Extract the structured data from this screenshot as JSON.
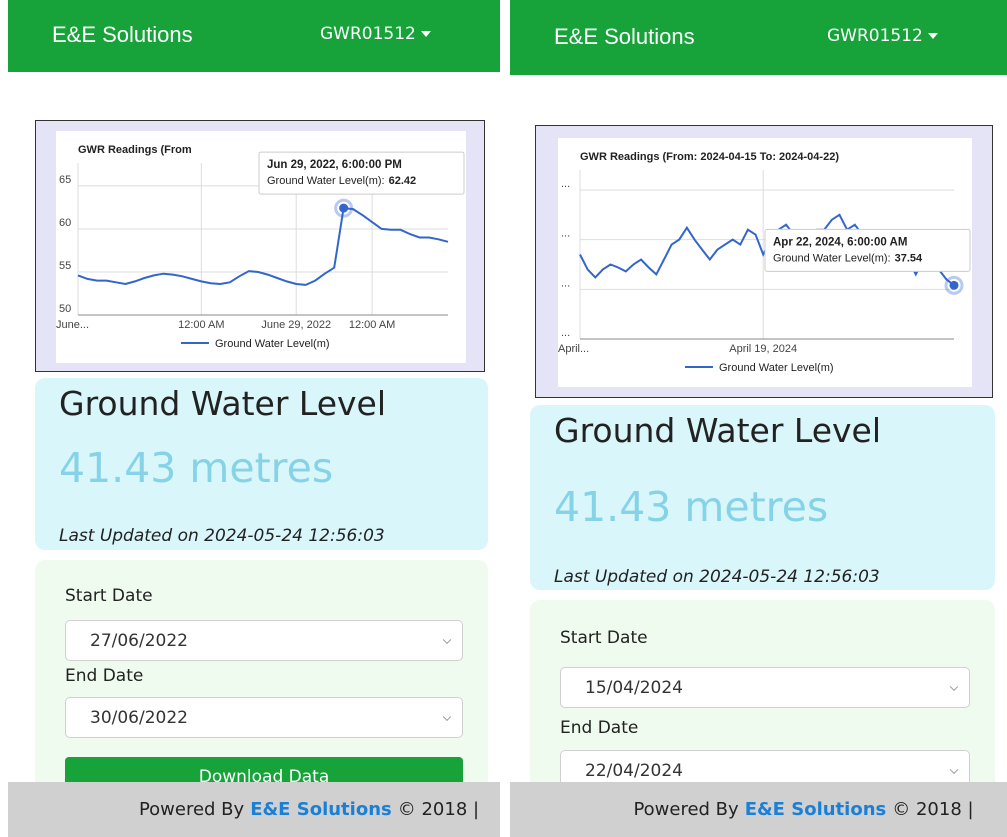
{
  "chart_data": [
    {
      "type": "line",
      "title": "GWR Readings (From",
      "categories": [
        "June...",
        null,
        null,
        null,
        null,
        null,
        null,
        null,
        null,
        null,
        null,
        null,
        null,
        "12:00 AM",
        null,
        null,
        null,
        null,
        null,
        null,
        null,
        null,
        null,
        "June 29, 2022",
        null,
        null,
        null,
        null,
        null,
        null,
        null,
        "12:00 AM",
        null,
        null,
        null,
        null,
        null,
        null,
        null,
        null
      ],
      "series": [
        {
          "name": "Ground Water Level(m)",
          "color": "#3366cc",
          "values": [
            54.6,
            54.2,
            54.0,
            54.0,
            53.8,
            53.6,
            53.9,
            54.3,
            54.6,
            54.8,
            54.7,
            54.5,
            54.2,
            53.9,
            53.7,
            53.6,
            53.8,
            54.5,
            55.1,
            55.0,
            54.7,
            54.3,
            53.9,
            53.6,
            53.5,
            54.0,
            54.8,
            55.5,
            62.42,
            62.3,
            61.6,
            60.8,
            60.0,
            59.9,
            59.9,
            59.4,
            59.0,
            59.0,
            58.8,
            58.5
          ]
        }
      ],
      "ylim": [
        50,
        66.5
      ],
      "yticks": [
        50,
        55,
        60,
        65
      ],
      "grid": true,
      "tooltip": {
        "date": "Jun 29, 2022, 6:00:00 PM",
        "label": "Ground Water Level(m):",
        "value": 62.42
      }
    },
    {
      "type": "line",
      "title": "GWR Readings (From: 2024-04-15 To: 2024-04-22)",
      "categories": [
        "April...",
        null,
        null,
        null,
        null,
        null,
        null,
        null,
        null,
        null,
        null,
        null,
        null,
        null,
        null,
        null,
        null,
        null,
        null,
        null,
        null,
        null,
        null,
        null,
        "April 19, 2024",
        null,
        null,
        null,
        null,
        null,
        null,
        null,
        null,
        null,
        null,
        null,
        null,
        null,
        null,
        null,
        null,
        null,
        null,
        null,
        null,
        null,
        null,
        null,
        null,
        null
      ],
      "series": [
        {
          "name": "Ground Water Level(m)",
          "color": "#3366cc",
          "values": [
            37.85,
            37.7,
            37.62,
            37.7,
            37.75,
            37.72,
            37.68,
            37.75,
            37.8,
            37.72,
            37.65,
            37.8,
            37.95,
            38.0,
            38.12,
            38.0,
            37.9,
            37.8,
            37.9,
            37.95,
            38.0,
            37.95,
            38.1,
            38.05,
            37.85,
            38.0,
            38.1,
            38.15,
            38.05,
            37.9,
            38.05,
            38.1,
            38.1,
            38.2,
            38.25,
            38.1,
            38.15,
            38.05,
            38.0,
            37.95,
            37.85,
            37.9,
            38.0,
            37.8,
            37.65,
            37.8,
            37.75,
            37.7,
            37.6,
            37.54
          ]
        }
      ],
      "ylim": [
        37,
        38.6
      ],
      "yticks": [
        {
          "value": 37,
          "label": "..."
        },
        {
          "value": 37.5,
          "label": "..."
        },
        {
          "value": 38,
          "label": "..."
        },
        {
          "value": 38.5,
          "label": "..."
        }
      ],
      "grid": true,
      "tooltip": {
        "date": "Apr 22, 2024, 6:00:00 AM",
        "label": "Ground Water Level(m):",
        "value": 37.54
      }
    }
  ],
  "screens": [
    {
      "header": {
        "brand": "E&E Solutions",
        "device": "GWR01512"
      },
      "status": {
        "title": "Ground Water Level",
        "reading": "41.43 metres",
        "updated": "Last Updated on 2024-05-24 12:56:03"
      },
      "form": {
        "start_label": "Start Date",
        "start_value": "27/06/2022",
        "end_label": "End Date",
        "end_value": "30/06/2022",
        "button": "Download Data"
      },
      "footer": {
        "prefix": "Powered By",
        "link": "E&E Solutions",
        "suffix": "© 2018 |"
      }
    },
    {
      "header": {
        "brand": "E&E Solutions",
        "device": "GWR01512"
      },
      "status": {
        "title": "Ground Water Level",
        "reading": "41.43 metres",
        "updated": "Last Updated on 2024-05-24 12:56:03"
      },
      "form": {
        "start_label": "Start Date",
        "start_value": "15/04/2024",
        "end_label": "End Date",
        "end_value": "22/04/2024"
      },
      "footer": {
        "prefix": "Powered By",
        "link": "E&E Solutions",
        "suffix": "© 2018 |"
      }
    }
  ]
}
